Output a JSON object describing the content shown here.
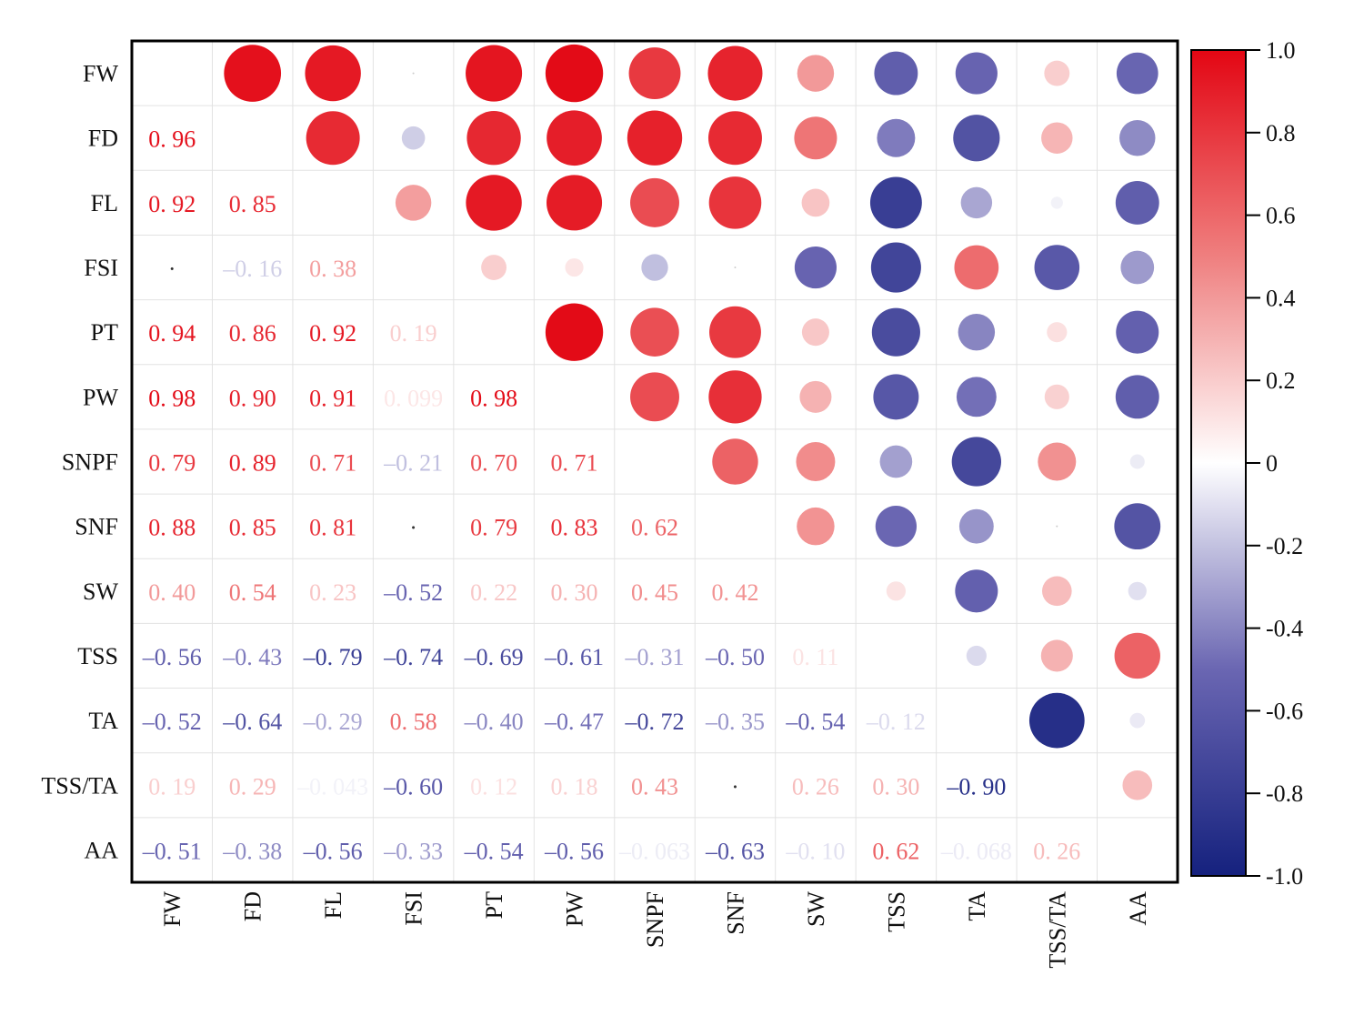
{
  "chart_data": {
    "type": "heatmap",
    "subtype": "correlation-matrix",
    "title": "",
    "variables": [
      "FW",
      "FD",
      "FL",
      "FSI",
      "PT",
      "PW",
      "SNPF",
      "SNF",
      "SW",
      "TSS",
      "TA",
      "TSS/TA",
      "AA"
    ],
    "lower_triangle": [
      [],
      [
        0.96
      ],
      [
        0.92,
        0.85
      ],
      [
        0.0,
        -0.16,
        0.38
      ],
      [
        0.94,
        0.86,
        0.92,
        0.19
      ],
      [
        0.98,
        0.9,
        0.91,
        0.099,
        0.98
      ],
      [
        0.79,
        0.89,
        0.71,
        -0.21,
        0.7,
        0.71
      ],
      [
        0.88,
        0.85,
        0.81,
        0.0,
        0.79,
        0.83,
        0.62
      ],
      [
        0.4,
        0.54,
        0.23,
        -0.52,
        0.22,
        0.3,
        0.45,
        0.42
      ],
      [
        -0.56,
        -0.43,
        -0.79,
        -0.74,
        -0.69,
        -0.61,
        -0.31,
        -0.5,
        0.11
      ],
      [
        -0.52,
        -0.64,
        -0.29,
        0.58,
        -0.4,
        -0.47,
        -0.72,
        -0.35,
        -0.54,
        -0.12
      ],
      [
        0.19,
        0.29,
        -0.043,
        -0.6,
        0.12,
        0.18,
        0.43,
        0.0,
        0.26,
        0.3,
        -0.9
      ],
      [
        -0.51,
        -0.38,
        -0.56,
        -0.33,
        -0.54,
        -0.56,
        -0.063,
        -0.63,
        -0.1,
        0.62,
        -0.068,
        0.26
      ]
    ],
    "near_zero_label": "·",
    "upper_display": "circles sized by |r|, colored by r",
    "lower_display": "numeric labels colored by r",
    "colorbar": {
      "range": [
        -1.0,
        1.0
      ],
      "ticks": [
        "1.0",
        "0.8",
        "0.6",
        "0.4",
        "0.2",
        "0",
        "-0.2",
        "-0.4",
        "-0.6",
        "-0.8",
        "-1.0"
      ],
      "tick_values": [
        1.0,
        0.8,
        0.6,
        0.4,
        0.2,
        0,
        -0.2,
        -0.4,
        -0.6,
        -0.8,
        -1.0
      ],
      "position": "right"
    },
    "colors": {
      "negative": "#15217e",
      "mid_negative": "#6a66b2",
      "zero": "#ffffff",
      "mid_positive": "#ef7f7f",
      "positive": "#e30613"
    },
    "grid": true
  }
}
